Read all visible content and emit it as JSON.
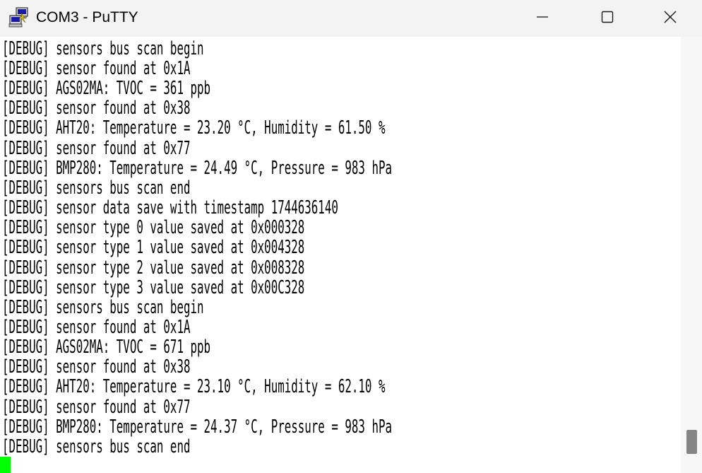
{
  "window": {
    "title": "COM3 - PuTTY",
    "icon": "putty-icon"
  },
  "terminal": {
    "lines": [
      "[DEBUG] sensors bus scan begin",
      "[DEBUG] sensor found at 0x1A",
      "[DEBUG] AGS02MA: TVOC = 361 ppb",
      "[DEBUG] sensor found at 0x38",
      "[DEBUG] AHT20: Temperature = 23.20 °C, Humidity = 61.50 %",
      "[DEBUG] sensor found at 0x77",
      "[DEBUG] BMP280: Temperature = 24.49 °C, Pressure = 983 hPa",
      "[DEBUG] sensors bus scan end",
      "[DEBUG] sensor data save with timestamp 1744636140",
      "[DEBUG] sensor type 0 value saved at 0x000328",
      "[DEBUG] sensor type 1 value saved at 0x004328",
      "[DEBUG] sensor type 2 value saved at 0x008328",
      "[DEBUG] sensor type 3 value saved at 0x00C328",
      "[DEBUG] sensors bus scan begin",
      "[DEBUG] sensor found at 0x1A",
      "[DEBUG] AGS02MA: TVOC = 671 ppb",
      "[DEBUG] sensor found at 0x38",
      "[DEBUG] AHT20: Temperature = 23.10 °C, Humidity = 62.10 %",
      "[DEBUG] sensor found at 0x77",
      "[DEBUG] BMP280: Temperature = 24.37 °C, Pressure = 983 hPa",
      "[DEBUG] sensors bus scan end"
    ],
    "cursor_color": "#00ff00",
    "background": "#ffffff",
    "foreground": "#000000"
  },
  "controls": {
    "minimize_icon": "minimize-icon",
    "maximize_icon": "maximize-icon",
    "close_icon": "close-icon"
  }
}
